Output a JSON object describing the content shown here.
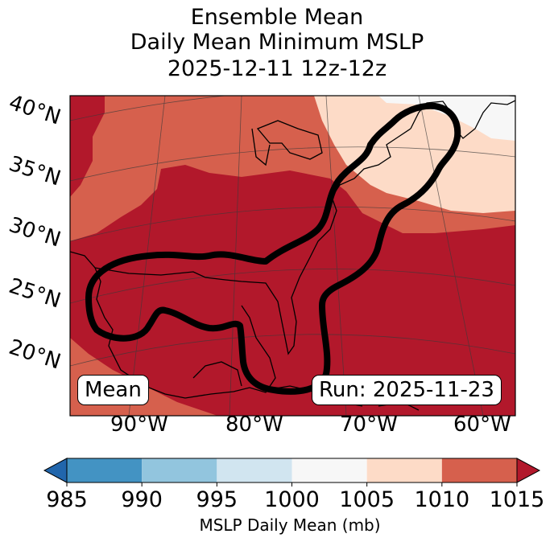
{
  "title": {
    "line1": "Ensemble Mean",
    "line2": "Daily Mean Minimum MSLP",
    "line3": "2025-12-11 12z-12z"
  },
  "map": {
    "lat_labels": [
      "40°N",
      "35°N",
      "30°N",
      "25°N",
      "20°N"
    ],
    "lon_labels": [
      "90°W",
      "80°W",
      "70°W",
      "60°W"
    ],
    "mean_label": "Mean",
    "run_label": "Run: 2025-11-23",
    "field_colors": {
      "dark_red": "#b2182b",
      "red": "#d6604d",
      "light_peach": "#fddbc7",
      "near_white": "#f7f7f7",
      "contour": "#000000",
      "coast": "#000000"
    }
  },
  "colorbar": {
    "ticks": [
      "985",
      "990",
      "995",
      "1000",
      "1005",
      "1010",
      "1015"
    ],
    "label": "MSLP Daily Mean (mb)",
    "bins": [
      {
        "from": 980,
        "to": 985,
        "color": "#2166ac"
      },
      {
        "from": 985,
        "to": 990,
        "color": "#4393c3"
      },
      {
        "from": 990,
        "to": 995,
        "color": "#92c5de"
      },
      {
        "from": 995,
        "to": 1000,
        "color": "#d1e5f0"
      },
      {
        "from": 1000,
        "to": 1005,
        "color": "#f7f7f7"
      },
      {
        "from": 1005,
        "to": 1010,
        "color": "#fddbc7"
      },
      {
        "from": 1010,
        "to": 1015,
        "color": "#d6604d"
      },
      {
        "from": 1015,
        "to": 1020,
        "color": "#b2182b"
      }
    ]
  }
}
